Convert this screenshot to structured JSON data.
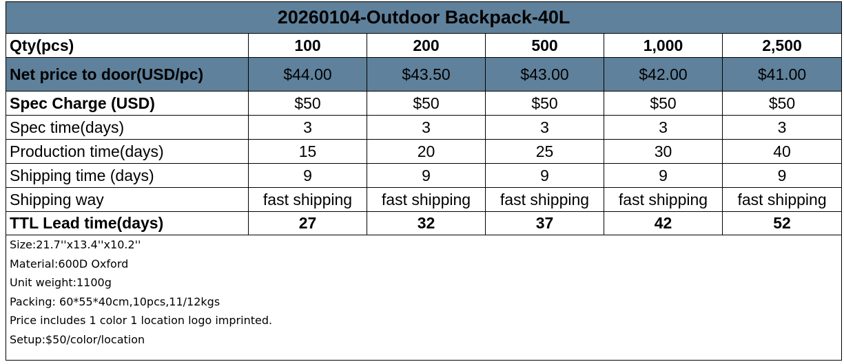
{
  "title": "20260104-Outdoor Backpack-40L",
  "rows": [
    {
      "label": "Qty(pcs)",
      "values": [
        "100",
        "200",
        "500",
        "1,000",
        "2,500"
      ]
    },
    {
      "label": "Net price to door(USD/pc)",
      "values": [
        "$44.00",
        "$43.50",
        "$43.00",
        "$42.00",
        "$41.00"
      ]
    },
    {
      "label": "Spec Charge (USD)",
      "values": [
        "$50",
        "$50",
        "$50",
        "$50",
        "$50"
      ]
    },
    {
      "label": "Spec time(days)",
      "values": [
        "3",
        "3",
        "3",
        "3",
        "3"
      ]
    },
    {
      "label": "Production time(days)",
      "values": [
        "15",
        "20",
        "25",
        "30",
        "40"
      ]
    },
    {
      "label": "Shipping time (days)",
      "values": [
        "9",
        "9",
        "9",
        "9",
        "9"
      ]
    },
    {
      "label": "Shipping way",
      "values": [
        "fast shipping",
        "fast shipping",
        "fast shipping",
        "fast shipping",
        "fast shipping"
      ]
    },
    {
      "label": "TTL Lead time(days)",
      "values": [
        "27",
        "32",
        "37",
        "42",
        "52"
      ]
    }
  ],
  "notes": [
    "Size:21.7''x13.4''x10.2''",
    "Material:600D Oxford",
    "Unit weight:1100g",
    "Packing: 60*55*40cm,10pcs,11/12kgs",
    "Price includes 1 color 1 location logo imprinted.",
    "Setup:$50/color/location"
  ],
  "colors": {
    "header_fill": "#5f819b",
    "border": "#000000",
    "text": "#000000"
  }
}
